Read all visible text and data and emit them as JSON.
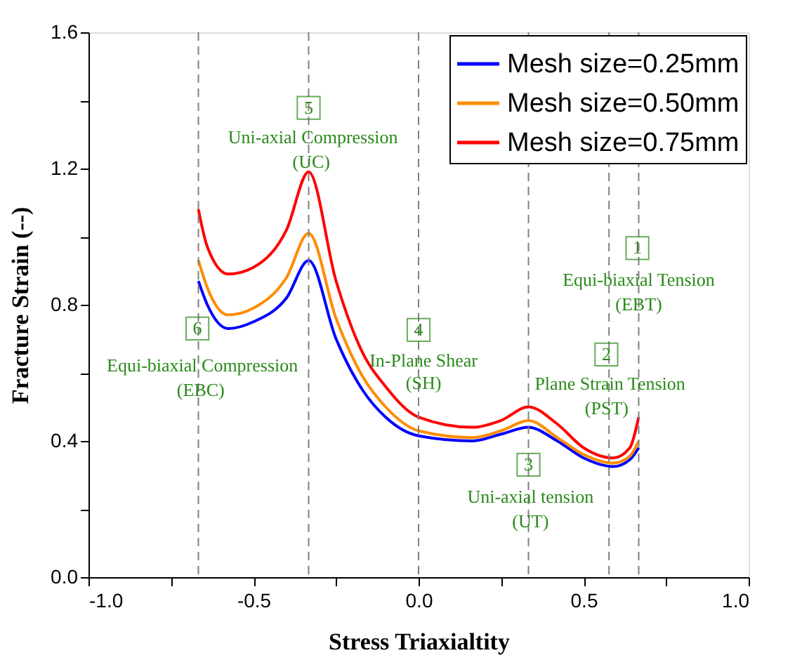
{
  "chart_data": {
    "type": "line",
    "xlabel": "Stress Triaxialtity",
    "ylabel": "Fracture Strain (--)",
    "xlim": [
      -1,
      1
    ],
    "ylim": [
      0,
      1.6
    ],
    "xticks": [
      {
        "value": -1,
        "label": "-1.0"
      },
      {
        "value": -0.75,
        "label": null
      },
      {
        "value": -0.5,
        "label": "-0.5"
      },
      {
        "value": -0.25,
        "label": null
      },
      {
        "value": 0,
        "label": "0.0"
      },
      {
        "value": 0.25,
        "label": null
      },
      {
        "value": 0.5,
        "label": "0.5"
      },
      {
        "value": 0.75,
        "label": null
      },
      {
        "value": 1,
        "label": "1.0"
      }
    ],
    "yticks": [
      {
        "value": 0,
        "label": "0.0"
      },
      {
        "value": 0.2,
        "label": null
      },
      {
        "value": 0.4,
        "label": "0.4"
      },
      {
        "value": 0.6,
        "label": null
      },
      {
        "value": 0.8,
        "label": "0.8"
      },
      {
        "value": 1.0,
        "label": null
      },
      {
        "value": 1.2,
        "label": "1.2"
      },
      {
        "value": 1.4,
        "label": null
      },
      {
        "value": 1.6,
        "label": "1.6"
      }
    ],
    "grid": false,
    "legend": "top right",
    "line_style": "solid",
    "marker": "none",
    "x": [
      -0.667,
      -0.64,
      -0.577,
      -0.5,
      -0.4,
      -0.333,
      -0.25,
      -0.17,
      -0.1,
      0,
      0.164,
      0.25,
      0.333,
      0.42,
      0.5,
      0.59,
      0.64,
      0.667
    ],
    "series": [
      {
        "name": "Mesh size=0.25mm",
        "color": "#0000ff",
        "values": [
          0.87,
          0.8,
          0.73,
          0.75,
          0.82,
          0.93,
          0.7,
          0.55,
          0.47,
          0.415,
          0.4,
          0.42,
          0.44,
          0.4,
          0.35,
          0.325,
          0.345,
          0.38
        ]
      },
      {
        "name": "Mesh size=0.50mm",
        "color": "#ff8c00",
        "values": [
          0.93,
          0.85,
          0.77,
          0.79,
          0.88,
          1.01,
          0.76,
          0.59,
          0.5,
          0.43,
          0.41,
          0.43,
          0.46,
          0.41,
          0.36,
          0.335,
          0.355,
          0.4
        ]
      },
      {
        "name": "Mesh size=0.75mm",
        "color": "#ff0000",
        "values": [
          1.08,
          0.97,
          0.89,
          0.91,
          1.02,
          1.19,
          0.87,
          0.66,
          0.56,
          0.47,
          0.44,
          0.46,
          0.5,
          0.45,
          0.38,
          0.35,
          0.38,
          0.47
        ]
      }
    ],
    "ref_lines": [
      {
        "axis": "x",
        "value": -0.667,
        "color": "#808080",
        "line_style": "dashed"
      },
      {
        "axis": "x",
        "value": -0.333,
        "color": "#808080",
        "line_style": "dashed"
      },
      {
        "axis": "x",
        "value": 0,
        "color": "#808080",
        "line_style": "dashed"
      },
      {
        "axis": "x",
        "value": 0.333,
        "color": "#808080",
        "line_style": "dashed"
      },
      {
        "axis": "x",
        "value": 0.577,
        "color": "#808080",
        "line_style": "dashed"
      },
      {
        "axis": "x",
        "value": 0.667,
        "color": "#808080",
        "line_style": "dashed"
      }
    ],
    "annotations": [
      {
        "text": "1",
        "x": 0.663,
        "y": 0.966
      },
      {
        "text": "Equi-biaxial Tension",
        "x": 0.667,
        "y": 0.873
      },
      {
        "text": "(EBT)",
        "x": 0.667,
        "y": 0.799
      },
      {
        "text": "2",
        "x": 0.569,
        "y": 0.654
      },
      {
        "text": "Plane Strain Tension",
        "x": 0.58,
        "y": 0.568
      },
      {
        "text": "(PST)",
        "x": 0.57,
        "y": 0.495
      },
      {
        "text": "3",
        "x": 0.333,
        "y": 0.33
      },
      {
        "text": "Uni-axial tension",
        "x": 0.339,
        "y": 0.235
      },
      {
        "text": "(UT)",
        "x": 0.339,
        "y": 0.162
      },
      {
        "text": "4",
        "x": 0,
        "y": 0.726
      },
      {
        "text": "In-Plane Shear",
        "x": 0.015,
        "y": 0.636
      },
      {
        "text": "(SH)",
        "x": 0.015,
        "y": 0.569
      },
      {
        "text": "5",
        "x": -0.333,
        "y": 1.378
      },
      {
        "text": "Uni-axial Compression",
        "x": -0.32,
        "y": 1.29
      },
      {
        "text": "(UC)",
        "x": -0.325,
        "y": 1.218
      },
      {
        "text": "6",
        "x": -0.67,
        "y": 0.73
      },
      {
        "text": "Equi-biaxial Compression",
        "x": -0.655,
        "y": 0.62
      },
      {
        "text": "(EBC)",
        "x": -0.66,
        "y": 0.548
      }
    ]
  }
}
